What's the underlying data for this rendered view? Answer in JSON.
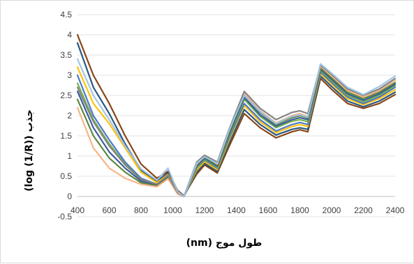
{
  "chart_data": {
    "type": "line",
    "title": "",
    "xlabel": "طول موج (nm)",
    "ylabel": "جذب (log (1/R))",
    "xlim": [
      400,
      2400
    ],
    "ylim": [
      -0.5,
      4.5
    ],
    "x_ticks": [
      400,
      600,
      800,
      1000,
      1200,
      1400,
      1600,
      1800,
      2000,
      2200,
      2400
    ],
    "y_ticks": [
      -0.5,
      0,
      0.5,
      1,
      1.5,
      2,
      2.5,
      3,
      3.5,
      4,
      4.5
    ],
    "x_tick_labels": [
      "400",
      "600",
      "800",
      "1000",
      "1200",
      "1400",
      "1600",
      "1800",
      "2000",
      "2200",
      "2400"
    ],
    "y_tick_labels": [
      "-0.5",
      "0",
      "0.5",
      "1",
      "1.5",
      "2",
      "2.5",
      "3",
      "3.5",
      "4",
      "4.5"
    ],
    "grid": {
      "horizontal": true,
      "vertical": false
    },
    "legend": "none",
    "x": [
      400,
      500,
      600,
      700,
      800,
      900,
      970,
      1030,
      1070,
      1150,
      1200,
      1280,
      1350,
      1450,
      1550,
      1650,
      1750,
      1800,
      1850,
      1930,
      2000,
      2100,
      2200,
      2300,
      2400
    ],
    "series": [
      {
        "color": "#843c0c",
        "values": [
          4.0,
          3.0,
          2.3,
          1.5,
          0.8,
          0.45,
          0.62,
          0.15,
          0.02,
          0.55,
          0.78,
          0.58,
          1.2,
          2.05,
          1.7,
          1.45,
          1.6,
          1.65,
          1.6,
          2.92,
          2.65,
          2.3,
          2.18,
          2.3,
          2.52
        ]
      },
      {
        "color": "#1f4e79",
        "values": [
          3.8,
          2.7,
          2.05,
          1.3,
          0.65,
          0.38,
          0.58,
          0.12,
          0.0,
          0.6,
          0.82,
          0.62,
          1.28,
          2.15,
          1.78,
          1.52,
          1.66,
          1.7,
          1.66,
          2.98,
          2.72,
          2.36,
          2.22,
          2.36,
          2.58
        ]
      },
      {
        "color": "#ffc000",
        "values": [
          3.2,
          2.3,
          1.8,
          1.2,
          0.6,
          0.34,
          0.54,
          0.12,
          0.0,
          0.65,
          0.86,
          0.66,
          1.35,
          2.25,
          1.85,
          1.58,
          1.73,
          1.78,
          1.73,
          3.04,
          2.78,
          2.42,
          2.27,
          2.42,
          2.64
        ]
      },
      {
        "color": "#4472c4",
        "values": [
          3.0,
          2.0,
          1.4,
          0.85,
          0.45,
          0.3,
          0.5,
          0.1,
          0.0,
          0.7,
          0.9,
          0.7,
          1.4,
          2.3,
          1.9,
          1.62,
          1.78,
          1.83,
          1.78,
          3.08,
          2.82,
          2.46,
          2.3,
          2.46,
          2.7
        ]
      },
      {
        "color": "#70ad47",
        "values": [
          2.8,
          1.9,
          1.3,
          0.8,
          0.42,
          0.3,
          0.5,
          0.1,
          0.0,
          0.72,
          0.92,
          0.72,
          1.45,
          2.4,
          1.98,
          1.7,
          1.86,
          1.9,
          1.85,
          3.12,
          2.86,
          2.5,
          2.34,
          2.5,
          2.74
        ]
      },
      {
        "color": "#2f5597",
        "values": [
          2.6,
          1.7,
          1.1,
          0.7,
          0.38,
          0.28,
          0.48,
          0.08,
          0.0,
          0.75,
          0.95,
          0.75,
          1.5,
          2.45,
          2.02,
          1.74,
          1.9,
          1.95,
          1.9,
          3.15,
          2.9,
          2.54,
          2.38,
          2.54,
          2.78
        ]
      },
      {
        "color": "#548235",
        "values": [
          2.4,
          1.5,
          0.95,
          0.6,
          0.34,
          0.26,
          0.46,
          0.08,
          0.0,
          0.78,
          0.98,
          0.78,
          1.55,
          2.5,
          2.08,
          1.78,
          1.95,
          2.0,
          1.94,
          3.18,
          2.94,
          2.58,
          2.42,
          2.58,
          2.82
        ]
      },
      {
        "color": "#f4b183",
        "values": [
          2.2,
          1.2,
          0.7,
          0.45,
          0.3,
          0.24,
          0.44,
          0.06,
          0.0,
          0.8,
          1.0,
          0.8,
          1.58,
          2.55,
          2.12,
          1.82,
          2.0,
          2.05,
          1.98,
          3.22,
          2.98,
          2.62,
          2.46,
          2.62,
          2.88
        ]
      },
      {
        "color": "#808080",
        "values": [
          2.7,
          1.85,
          1.25,
          0.78,
          0.42,
          0.3,
          0.52,
          0.1,
          0.0,
          0.85,
          1.02,
          0.85,
          1.62,
          2.6,
          2.18,
          1.9,
          2.08,
          2.12,
          2.05,
          3.25,
          3.02,
          2.66,
          2.5,
          2.66,
          2.92
        ]
      },
      {
        "color": "#9dc3e6",
        "values": [
          3.4,
          2.5,
          1.9,
          1.25,
          0.68,
          0.4,
          0.7,
          0.12,
          0.0,
          0.82,
          0.98,
          0.82,
          1.6,
          2.5,
          2.1,
          1.8,
          1.98,
          2.02,
          1.96,
          3.28,
          3.05,
          2.7,
          2.52,
          2.72,
          2.98
        ]
      }
    ]
  }
}
